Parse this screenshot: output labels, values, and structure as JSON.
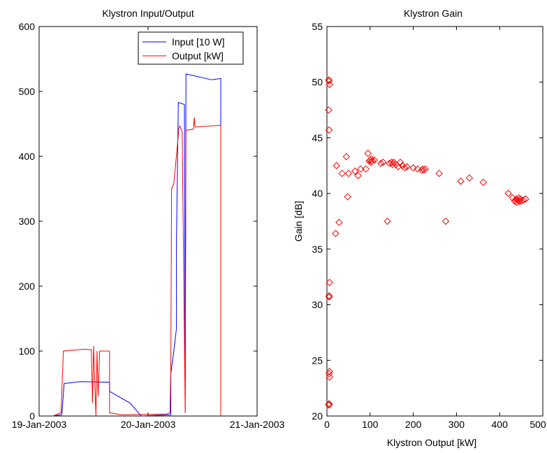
{
  "chart_data": [
    {
      "type": "line",
      "title": "Klystron Input/Output",
      "xlabel": "",
      "ylabel": "",
      "x_ticks": [
        "19-Jan-2003",
        "20-Jan-2003",
        "21-Jan-2003"
      ],
      "xlim": [
        "19-Jan-2003",
        "21-Jan-2003"
      ],
      "ylim": [
        0,
        600
      ],
      "y_ticks": [
        0,
        100,
        200,
        300,
        400,
        500,
        600
      ],
      "grid": false,
      "legend": "top-right",
      "colors": {
        "input": "#0000ff",
        "output": "#ff0000"
      },
      "series": [
        {
          "name": "Input [10 W]",
          "color": "#0000ff",
          "points": [
            [
              "19-Jan-2003 03:00",
              0
            ],
            [
              "19-Jan-2003 05:00",
              2
            ],
            [
              "19-Jan-2003 05:30",
              50
            ],
            [
              "19-Jan-2003 09:00",
              53
            ],
            [
              "19-Jan-2003 15:30",
              52
            ],
            [
              "19-Jan-2003 15:30",
              38
            ],
            [
              "19-Jan-2003 20:00",
              20
            ],
            [
              "19-Jan-2003 22:30",
              0
            ],
            [
              "20-Jan-2003 05:00",
              2
            ],
            [
              "20-Jan-2003 05:00",
              65
            ],
            [
              "20-Jan-2003 05:40",
              100
            ],
            [
              "20-Jan-2003 06:15",
              135
            ],
            [
              "20-Jan-2003 06:15",
              270
            ],
            [
              "20-Jan-2003 06:40",
              483
            ],
            [
              "20-Jan-2003 08:00",
              480
            ],
            [
              "20-Jan-2003 08:10",
              5
            ],
            [
              "20-Jan-2003 08:20",
              527
            ],
            [
              "20-Jan-2003 14:00",
              518
            ],
            [
              "20-Jan-2003 16:00",
              520
            ],
            [
              "20-Jan-2003 16:00",
              380
            ],
            [
              "20-Jan-2003 16:00",
              0
            ]
          ]
        },
        {
          "name": "Output [kW]",
          "color": "#ff0000",
          "points": [
            [
              "19-Jan-2003 03:00",
              0
            ],
            [
              "19-Jan-2003 04:50",
              5
            ],
            [
              "19-Jan-2003 05:20",
              100
            ],
            [
              "19-Jan-2003 10:00",
              103
            ],
            [
              "19-Jan-2003 11:30",
              102
            ],
            [
              "19-Jan-2003 11:45",
              20
            ],
            [
              "19-Jan-2003 12:00",
              108
            ],
            [
              "19-Jan-2003 12:30",
              0
            ],
            [
              "19-Jan-2003 12:45",
              100
            ],
            [
              "19-Jan-2003 13:00",
              30
            ],
            [
              "19-Jan-2003 13:20",
              100
            ],
            [
              "19-Jan-2003 15:30",
              100
            ],
            [
              "19-Jan-2003 15:30",
              5
            ],
            [
              "19-Jan-2003 18:00",
              2
            ],
            [
              "20-Jan-2003 04:00",
              3
            ],
            [
              "20-Jan-2003 04:50",
              5
            ],
            [
              "20-Jan-2003 05:00",
              70
            ],
            [
              "20-Jan-2003 05:10",
              350
            ],
            [
              "20-Jan-2003 05:40",
              358
            ],
            [
              "20-Jan-2003 06:50",
              445
            ],
            [
              "20-Jan-2003 07:00",
              447
            ],
            [
              "20-Jan-2003 07:30",
              437
            ],
            [
              "20-Jan-2003 08:10",
              5
            ],
            [
              "20-Jan-2003 08:20",
              440
            ],
            [
              "20-Jan-2003 10:00",
              442
            ],
            [
              "20-Jan-2003 10:10",
              460
            ],
            [
              "20-Jan-2003 10:20",
              445
            ],
            [
              "20-Jan-2003 16:00",
              448
            ],
            [
              "20-Jan-2003 16:00",
              290
            ],
            [
              "20-Jan-2003 16:00",
              0
            ]
          ]
        }
      ]
    },
    {
      "type": "scatter",
      "title": "Klystron Gain",
      "xlabel": "Klystron Output [kW]",
      "ylabel": "Gain [dB]",
      "xlim": [
        0,
        500
      ],
      "ylim": [
        20,
        55
      ],
      "x_ticks": [
        0,
        100,
        200,
        300,
        400,
        500
      ],
      "y_ticks": [
        20,
        25,
        30,
        35,
        40,
        45,
        50,
        55
      ],
      "grid": false,
      "marker": "diamond",
      "color": "#ff0000",
      "series": [
        {
          "x": [
            4,
            5,
            6,
            4,
            5,
            6,
            5,
            5,
            6,
            5,
            6,
            4,
            5,
            5,
            20,
            22,
            28,
            35,
            45,
            48,
            50,
            65,
            72,
            78,
            90,
            95,
            98,
            100,
            102,
            103,
            105,
            110,
            125,
            130,
            140,
            145,
            150,
            152,
            155,
            160,
            165,
            170,
            175,
            180,
            185,
            200,
            210,
            220,
            222,
            225,
            228,
            260,
            275,
            310,
            330,
            362,
            420,
            430,
            435,
            438,
            440,
            442,
            444,
            446,
            448,
            450,
            455,
            460
          ],
          "y": [
            50.2,
            50.1,
            49.8,
            47.5,
            45.7,
            32.0,
            30.7,
            30.8,
            24.0,
            23.8,
            23.5,
            21.0,
            21.1,
            21.0,
            36.4,
            42.5,
            37.4,
            41.8,
            43.3,
            39.7,
            41.8,
            42.0,
            41.6,
            42.2,
            42.2,
            43.6,
            42.9,
            43.0,
            42.8,
            43.1,
            42.9,
            43.0,
            42.7,
            42.8,
            37.5,
            42.7,
            42.8,
            42.6,
            42.8,
            42.6,
            42.4,
            42.8,
            42.5,
            42.3,
            42.4,
            42.3,
            42.2,
            42.1,
            42.2,
            42.1,
            42.2,
            41.8,
            37.5,
            41.1,
            41.4,
            41.0,
            40.0,
            39.6,
            39.3,
            39.5,
            39.2,
            39.4,
            39.6,
            39.3,
            39.5,
            39.3,
            39.4,
            39.5
          ]
        }
      ]
    }
  ]
}
